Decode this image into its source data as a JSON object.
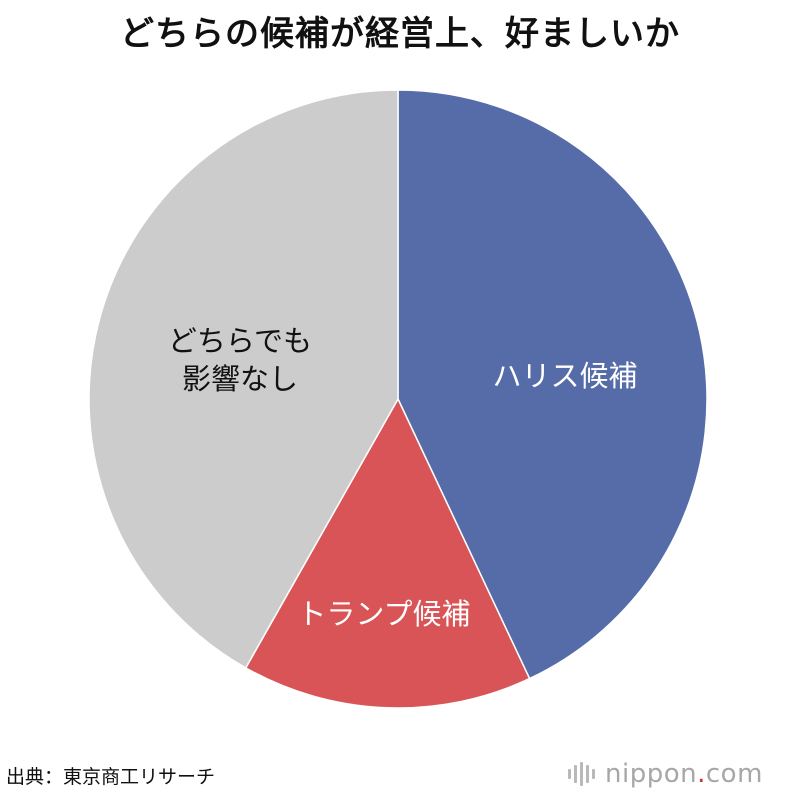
{
  "chart_data": {
    "type": "pie",
    "title": "どちらの候補が経営上、好ましいか",
    "slices": [
      {
        "label": "ハリス候補",
        "value": 43.0,
        "color": "#566ca8"
      },
      {
        "label": "トランプ候補",
        "value": 15.2,
        "color": "#d85456"
      },
      {
        "label": "どちらでも\n影響なし",
        "value": 41.8,
        "color": "#cccccc"
      }
    ],
    "start_angle_deg": 0,
    "direction": "clockwise"
  },
  "source": "出典：東京商工リサーチ",
  "brand": {
    "name": "nippon",
    "dot": ".",
    "tld": "com"
  }
}
